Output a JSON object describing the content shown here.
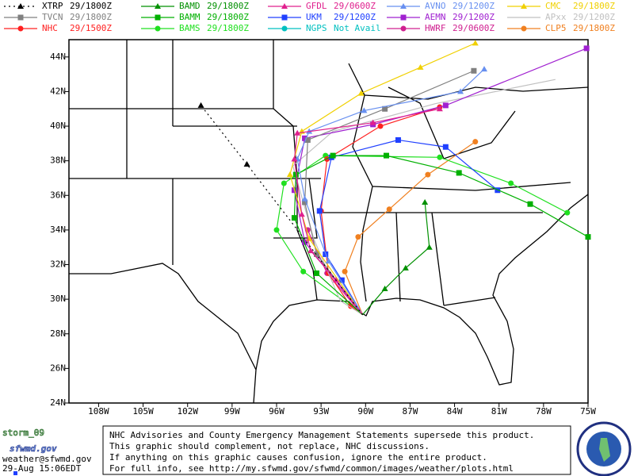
{
  "map": {
    "xlim": [
      -110,
      -75
    ],
    "ylim": [
      24,
      45
    ],
    "xticks": [
      {
        "value": -108,
        "label": "108W"
      },
      {
        "value": -105,
        "label": "105W"
      },
      {
        "value": -102,
        "label": "102W"
      },
      {
        "value": -99,
        "label": "99W"
      },
      {
        "value": -96,
        "label": "96W"
      },
      {
        "value": -93,
        "label": "93W"
      },
      {
        "value": -90,
        "label": "90W"
      },
      {
        "value": -87,
        "label": "87W"
      },
      {
        "value": -84,
        "label": "84W"
      },
      {
        "value": -81,
        "label": "81W"
      },
      {
        "value": -78,
        "label": "78W"
      },
      {
        "value": -75,
        "label": "75W"
      }
    ],
    "yticks": [
      {
        "value": 24,
        "label": "24N"
      },
      {
        "value": 26,
        "label": "26N"
      },
      {
        "value": 28,
        "label": "28N"
      },
      {
        "value": 30,
        "label": "30N"
      },
      {
        "value": 32,
        "label": "32N"
      },
      {
        "value": 34,
        "label": "34N"
      },
      {
        "value": 36,
        "label": "36N"
      },
      {
        "value": 38,
        "label": "38N"
      },
      {
        "value": 40,
        "label": "40N"
      },
      {
        "value": 42,
        "label": "42N"
      },
      {
        "value": 44,
        "label": "44N"
      }
    ],
    "tracks": [
      {
        "name": "XTRP",
        "time": "29/1800Z",
        "color": "#000000",
        "marker": "triangle",
        "dashed": true,
        "points": [
          [
            -90.2,
            29.1
          ],
          [
            -98.0,
            37.8
          ],
          [
            -101.1,
            41.2
          ]
        ]
      },
      {
        "name": "BAMD",
        "time": "29/1800Z",
        "color": "#009000",
        "marker": "triangle",
        "points": [
          [
            -90.2,
            29.1
          ],
          [
            -88.7,
            30.6
          ],
          [
            -87.3,
            31.8
          ],
          [
            -85.7,
            33.0
          ],
          [
            -86.0,
            35.6
          ]
        ]
      },
      {
        "name": "GFDL",
        "time": "29/0600Z",
        "color": "#e0208e",
        "marker": "triangle",
        "points": [
          [
            -90.2,
            29.1
          ],
          [
            -92.0,
            31.1
          ],
          [
            -93.7,
            32.8
          ],
          [
            -94.3,
            34.9
          ],
          [
            -94.8,
            38.1
          ],
          [
            -94.6,
            39.6
          ],
          [
            -89.5,
            40.2
          ],
          [
            -85.0,
            41.0
          ]
        ]
      },
      {
        "name": "AVNO",
        "time": "29/1200Z",
        "color": "#6890f0",
        "marker": "triangle",
        "points": [
          [
            -90.2,
            29.1
          ],
          [
            -92.5,
            32.2
          ],
          [
            -94.1,
            35.8
          ],
          [
            -94.6,
            38.1
          ],
          [
            -93.8,
            39.7
          ],
          [
            -90.1,
            40.9
          ],
          [
            -83.6,
            42.0
          ],
          [
            -82.0,
            43.3
          ]
        ]
      },
      {
        "name": "CMC",
        "time": "29/1800Z",
        "color": "#f0d000",
        "marker": "triangle",
        "points": [
          [
            -90.2,
            29.1
          ],
          [
            -93.8,
            33.5
          ],
          [
            -95.1,
            37.2
          ],
          [
            -94.3,
            39.7
          ],
          [
            -90.3,
            41.9
          ],
          [
            -86.3,
            43.4
          ],
          [
            -82.6,
            44.8
          ]
        ]
      },
      {
        "name": "TVCN",
        "time": "29/1800Z",
        "color": "#808080",
        "marker": "square",
        "points": [
          [
            -90.2,
            29.1
          ],
          [
            -93.3,
            32.6
          ],
          [
            -94.1,
            35.6
          ],
          [
            -93.9,
            39.2
          ],
          [
            -88.7,
            41.0
          ],
          [
            -82.7,
            43.2
          ]
        ]
      },
      {
        "name": "BAMM",
        "time": "29/1800Z",
        "color": "#00b000",
        "marker": "square",
        "points": [
          [
            -90.2,
            29.1
          ],
          [
            -93.3,
            31.5
          ],
          [
            -94.8,
            34.7
          ],
          [
            -94.7,
            37.2
          ],
          [
            -92.2,
            38.3
          ],
          [
            -88.6,
            38.3
          ],
          [
            -83.7,
            37.3
          ],
          [
            -78.9,
            35.5
          ],
          [
            -75.0,
            33.6
          ]
        ]
      },
      {
        "name": "UKM",
        "time": "29/1200Z",
        "color": "#2040ff",
        "marker": "square",
        "points": [
          [
            -90.2,
            29.1
          ],
          [
            -91.6,
            31.1
          ],
          [
            -92.7,
            32.6
          ],
          [
            -93.1,
            35.1
          ],
          [
            -92.3,
            38.2
          ],
          [
            -87.8,
            39.2
          ],
          [
            -84.6,
            38.8
          ],
          [
            -81.1,
            36.3
          ]
        ]
      },
      {
        "name": "AEMN",
        "time": "29/1200Z",
        "color": "#a020d0",
        "marker": "square",
        "points": [
          [
            -90.2,
            29.1
          ],
          [
            -94.1,
            33.3
          ],
          [
            -94.8,
            36.3
          ],
          [
            -94.1,
            39.3
          ],
          [
            -89.5,
            40.1
          ],
          [
            -84.6,
            41.2
          ],
          [
            -75.1,
            44.5
          ]
        ]
      },
      {
        "name": "APxx",
        "time": "29/1200Z",
        "color": "#c0c0c0",
        "marker": "none",
        "points": [
          [
            -90.2,
            29.1
          ],
          [
            -91.7,
            29.9
          ],
          [
            -93.5,
            33.5
          ],
          [
            -94.9,
            37.7
          ],
          [
            -92.2,
            39.7
          ],
          [
            -85.3,
            41.3
          ],
          [
            -77.2,
            42.7
          ]
        ]
      },
      {
        "name": "NHC",
        "time": "29/1500Z",
        "color": "#ff2020",
        "marker": "circle",
        "points": [
          [
            -90.2,
            29.1
          ],
          [
            -91.0,
            29.6
          ],
          [
            -92.5,
            31.5
          ],
          [
            -93.0,
            35.1
          ],
          [
            -92.6,
            38.1
          ],
          [
            -89.0,
            40.0
          ],
          [
            -85.0,
            41.1
          ]
        ]
      },
      {
        "name": "BAMS",
        "time": "29/1800Z",
        "color": "#20e020",
        "marker": "circle",
        "points": [
          [
            -90.2,
            29.1
          ],
          [
            -94.2,
            31.6
          ],
          [
            -96.0,
            34.0
          ],
          [
            -95.5,
            36.7
          ],
          [
            -92.7,
            38.3
          ],
          [
            -85.0,
            38.2
          ],
          [
            -80.2,
            36.7
          ],
          [
            -76.4,
            35.0
          ]
        ]
      },
      {
        "name": "NGPS",
        "time": "Not Avail",
        "color": "#00c0c0",
        "marker": "circle",
        "points": []
      },
      {
        "name": "HWRF",
        "time": "29/0600Z",
        "color": "#d02090",
        "marker": "circle",
        "points": [
          [
            -90.2,
            29.1
          ],
          [
            -92.6,
            31.5
          ],
          [
            -93.9,
            34.0
          ]
        ]
      },
      {
        "name": "CLP5",
        "time": "29/1800Z",
        "color": "#f08020",
        "marker": "circle",
        "points": [
          [
            -90.2,
            29.1
          ],
          [
            -91.4,
            31.6
          ],
          [
            -90.5,
            33.6
          ],
          [
            -88.4,
            35.2
          ],
          [
            -85.8,
            37.2
          ],
          [
            -82.6,
            39.1
          ]
        ]
      }
    ]
  },
  "footer": {
    "storm": "storm_09",
    "site": "sfwmd.gov",
    "email": "weather@sfwmd.gov",
    "stamp": "29-Aug 15:06EDT",
    "notice": [
      "NHC Advisories and County Emergency Management Statements supersede this product.",
      "This graphic should complement, not replace, NHC discussions.",
      "If anything on this graphic causes confusion, ignore the entire product.",
      "For full info, see  http://my.sfwmd.gov/sfwmd/common/images/weather/plots.html"
    ]
  }
}
